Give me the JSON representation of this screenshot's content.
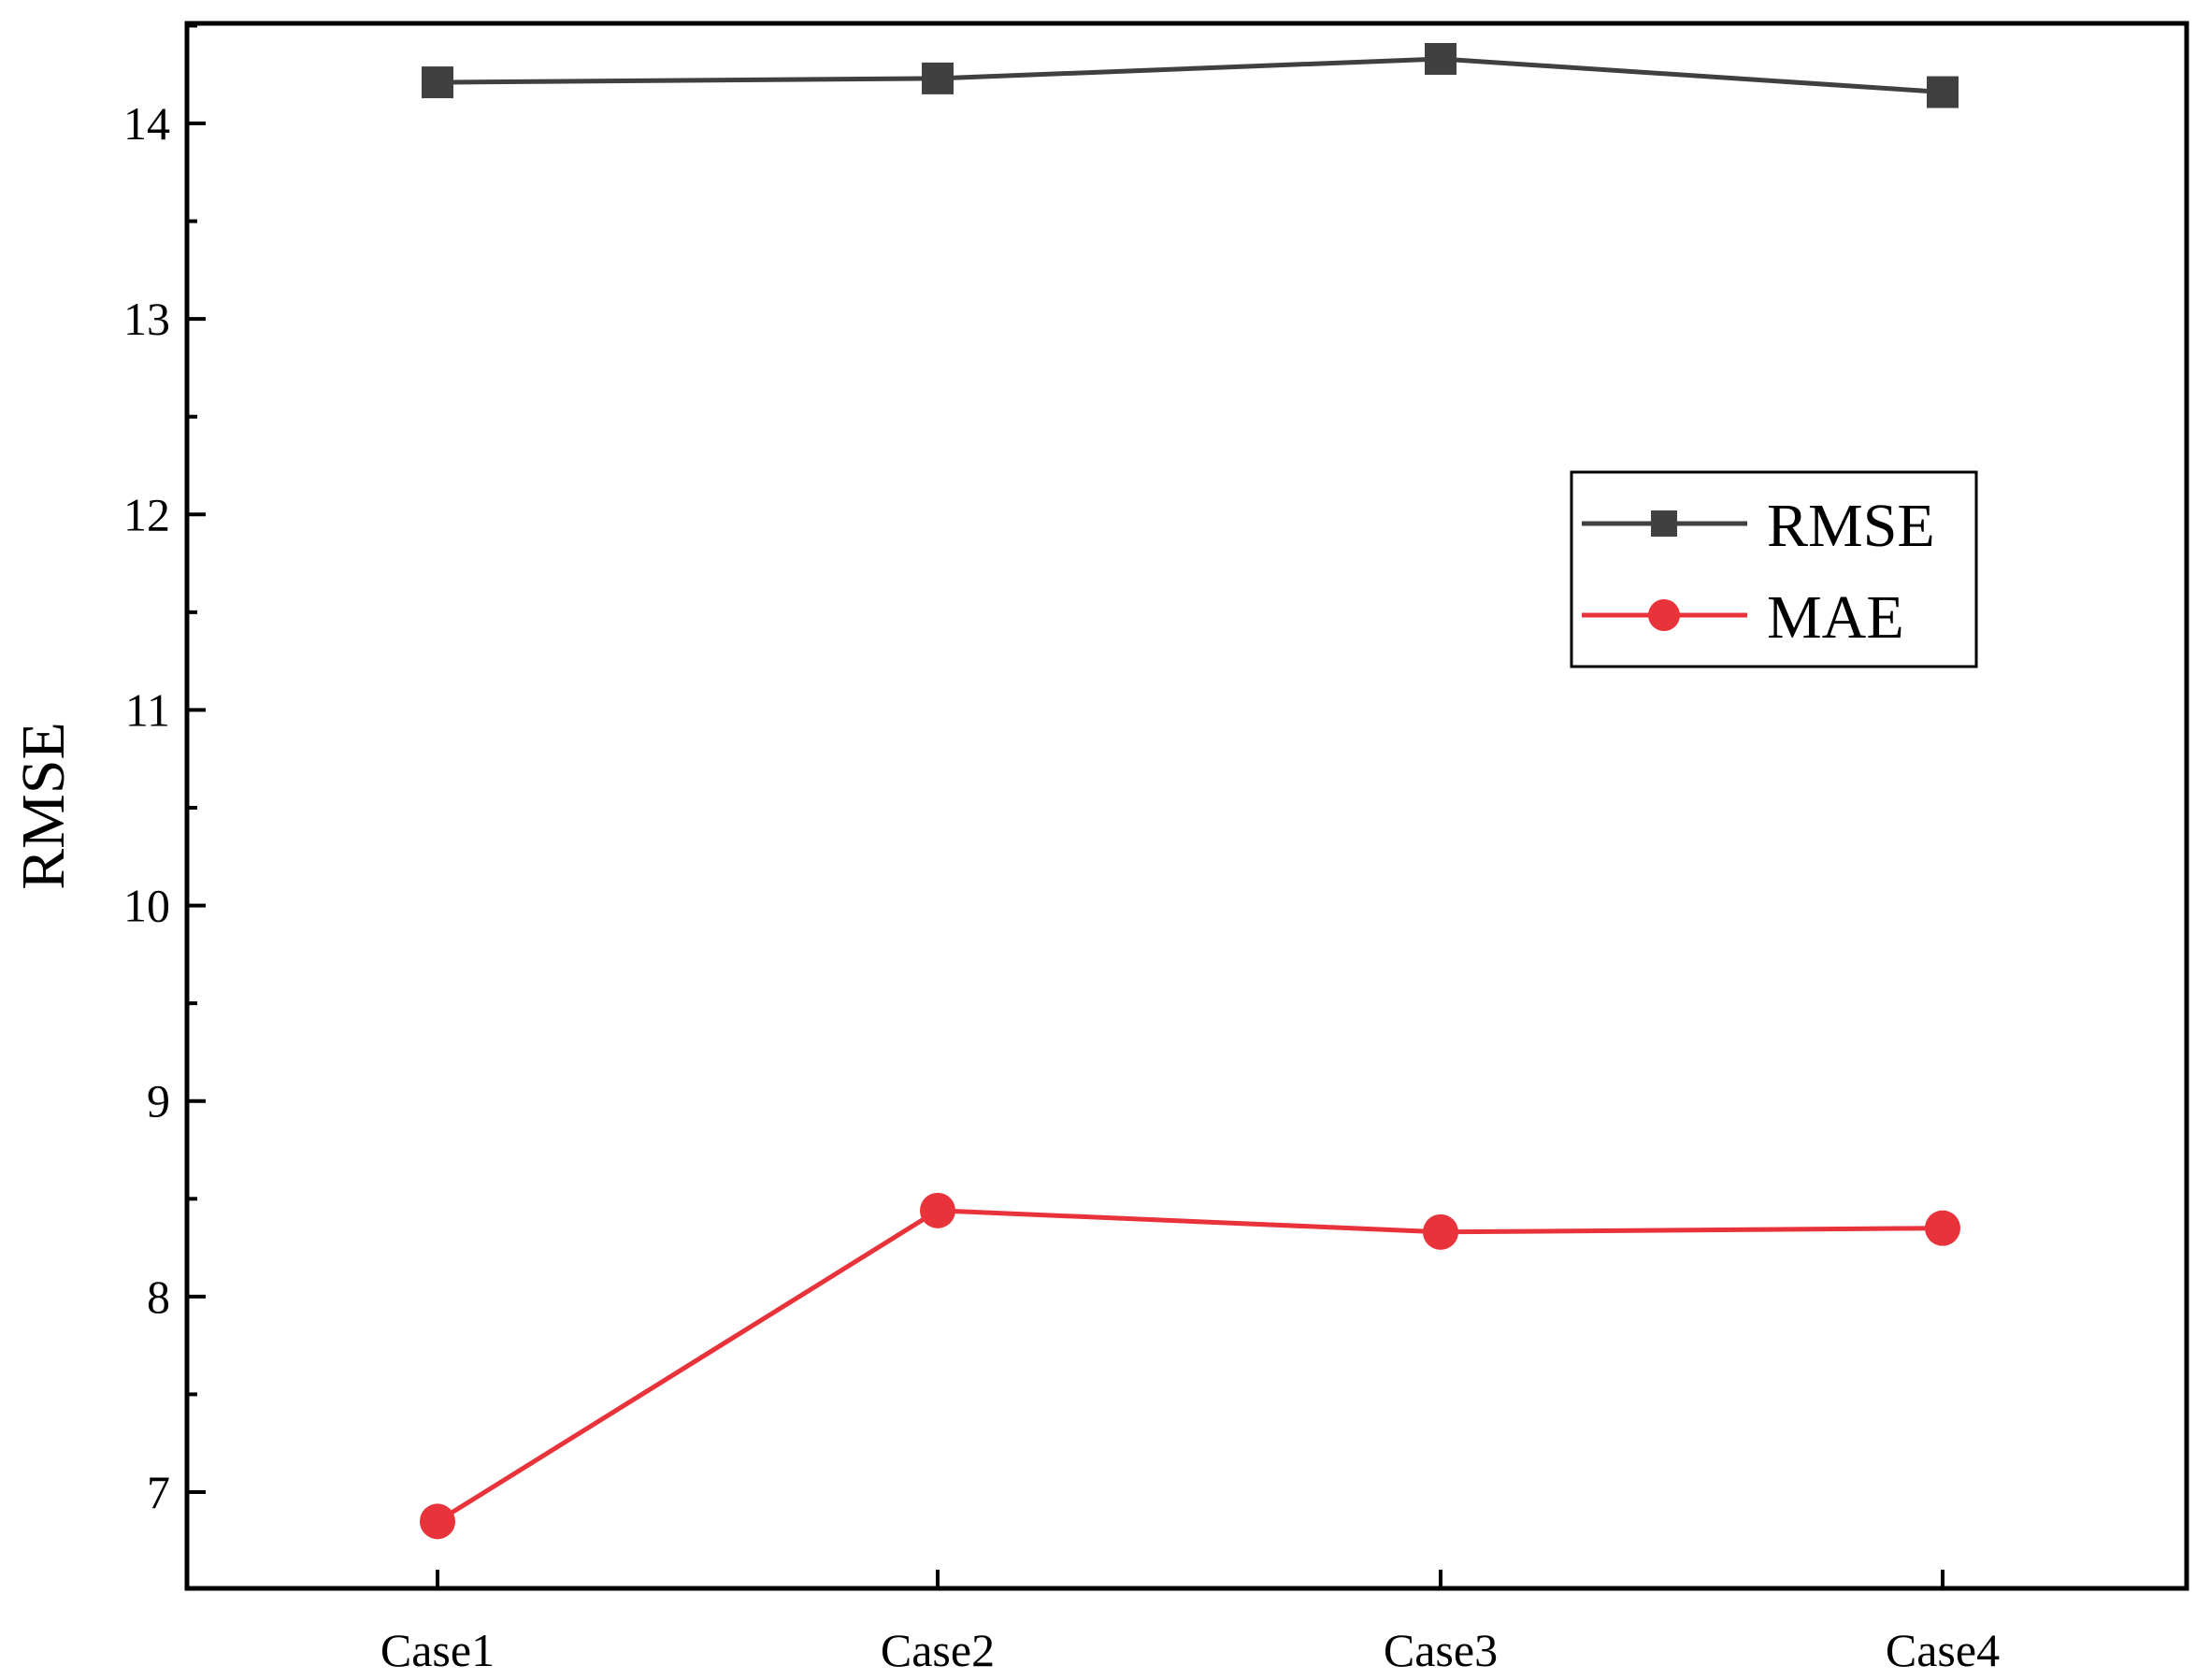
{
  "chart_data": {
    "type": "line",
    "categories": [
      "Case1",
      "Case2",
      "Case3",
      "Case4"
    ],
    "ylabel": "RMSE",
    "xlabel": "",
    "ylim": [
      6.5,
      14.5
    ],
    "yticks": [
      7,
      8,
      9,
      10,
      11,
      12,
      13,
      14
    ],
    "grid": false,
    "legend_position": "upper-right",
    "series": [
      {
        "name": "RMSE",
        "values": [
          14.21,
          14.23,
          14.33,
          14.16
        ],
        "color": "#404040",
        "marker": "square"
      },
      {
        "name": "MAE",
        "values": [
          6.85,
          8.44,
          8.33,
          8.35
        ],
        "color": "#e8333a",
        "marker": "circle"
      }
    ]
  }
}
